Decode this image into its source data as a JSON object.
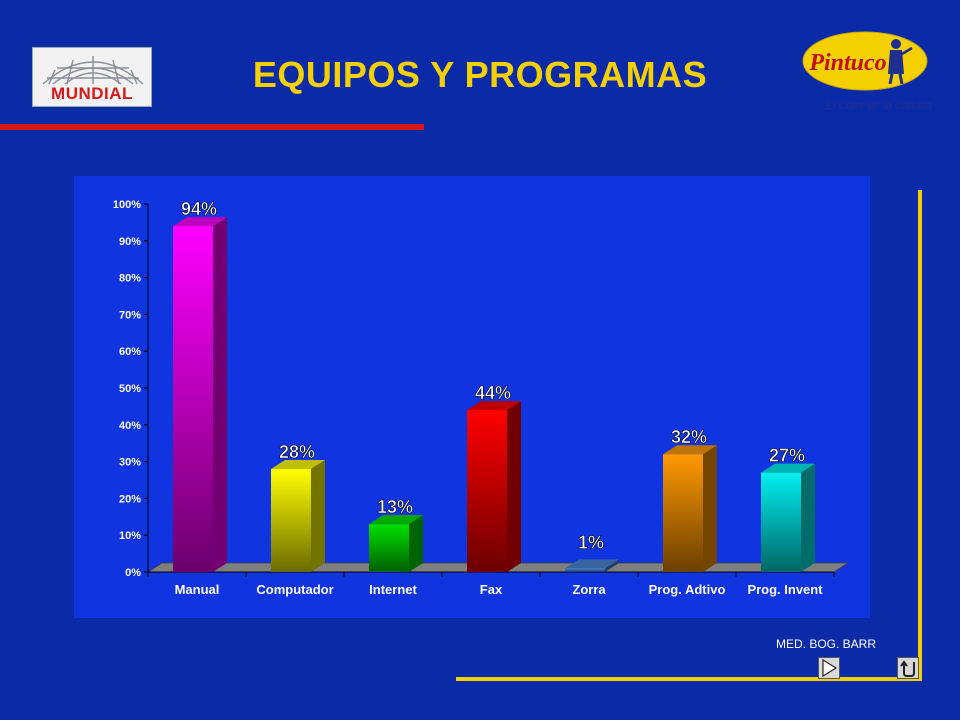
{
  "header": {
    "title": "EQUIPOS Y PROGRAMAS",
    "left_logo_text": "MUNDIAL",
    "right_logo_text": "Pintuco",
    "right_logo_slogan": "El Color de la Calidad"
  },
  "footer": {
    "text": "MED. BOG. BARR",
    "next_icon": "play-next-icon",
    "return_icon": "return-icon"
  },
  "colors": {
    "background": "#0a2aa8",
    "panel": "#0f34e0",
    "title": "#f5d000",
    "accent_red": "#d81818",
    "accent_yellow": "#f5d000"
  },
  "chart_data": {
    "type": "bar",
    "categories": [
      "Manual",
      "Computador",
      "Internet",
      "Fax",
      "Zorra",
      "Prog. Adtivo",
      "Prog. Invent"
    ],
    "values": [
      94,
      28,
      13,
      44,
      1,
      32,
      27
    ],
    "data_labels": [
      "94%",
      "28%",
      "13%",
      "44%",
      "1%",
      "32%",
      "27%"
    ],
    "bar_colors": [
      "#ff00ff",
      "#ffff00",
      "#00e000",
      "#ff0000",
      "#4a86d8",
      "#ff9900",
      "#00f0f0"
    ],
    "y_ticks": [
      "0%",
      "10%",
      "20%",
      "30%",
      "40%",
      "50%",
      "60%",
      "70%",
      "80%",
      "90%",
      "100%"
    ],
    "ylim": [
      0,
      100
    ],
    "title": "",
    "xlabel": "",
    "ylabel": "",
    "grid": false,
    "legend": "none",
    "style": "3d"
  }
}
